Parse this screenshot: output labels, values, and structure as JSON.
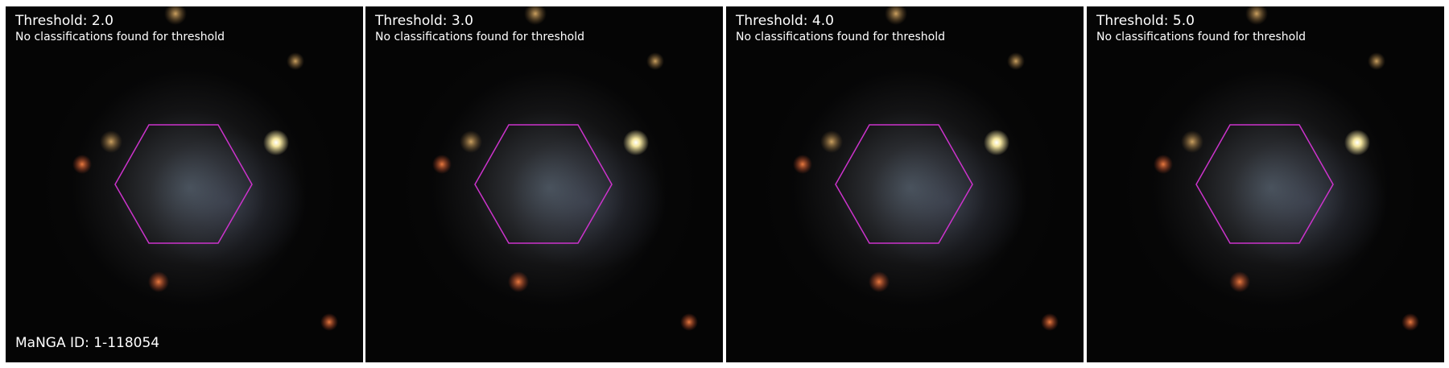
{
  "panels": [
    {
      "title": "Threshold: 2.0",
      "message": "No classifications found for threshold"
    },
    {
      "title": "Threshold: 3.0",
      "message": "No classifications found for threshold"
    },
    {
      "title": "Threshold: 4.0",
      "message": "No classifications found for threshold"
    },
    {
      "title": "Threshold: 5.0",
      "message": "No classifications found for threshold"
    }
  ],
  "manga_id_label": "MaNGA ID: 1-118054",
  "colors": {
    "hexagon": "#cc33cc",
    "text": "#ffffff",
    "background": "#050505"
  }
}
